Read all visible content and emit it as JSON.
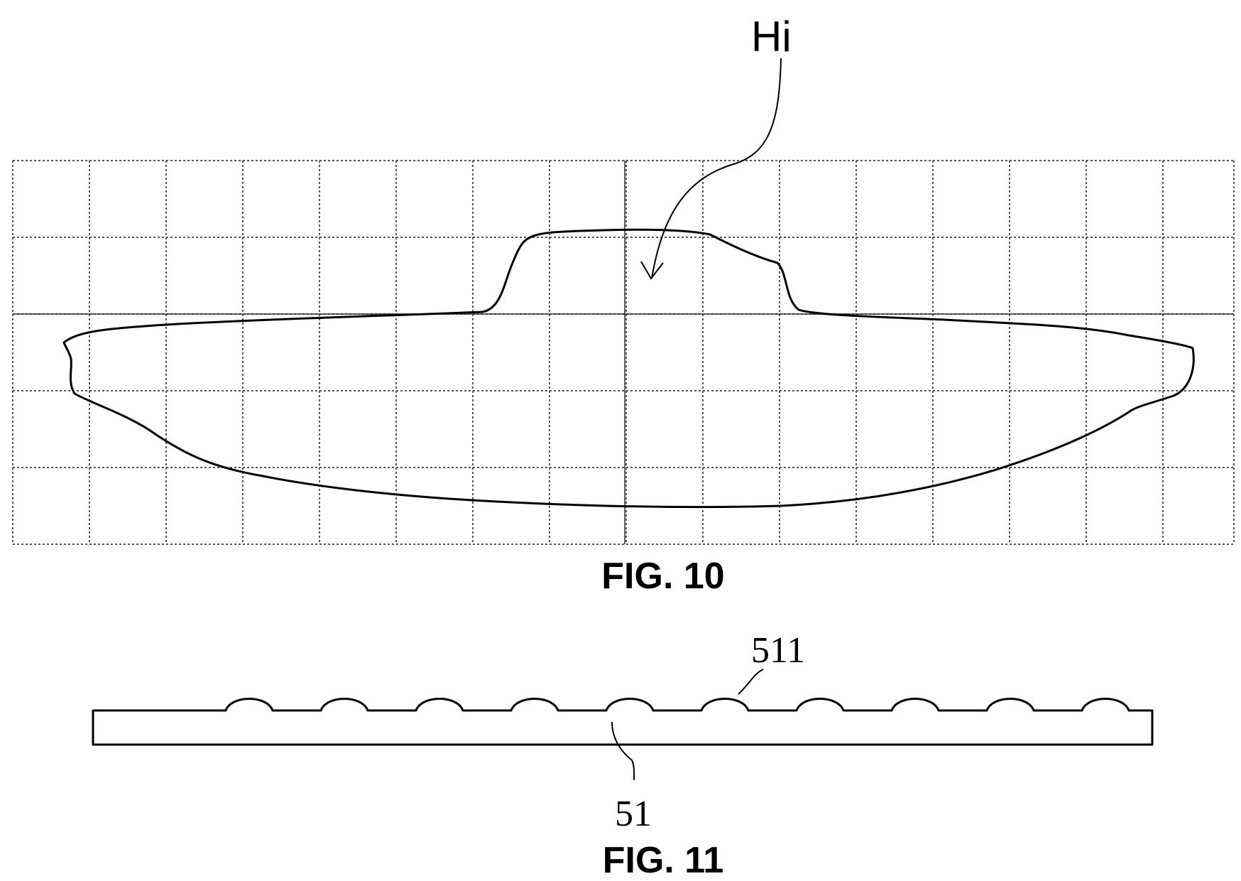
{
  "figures": [
    {
      "id": "fig10",
      "caption": "FIG. 10",
      "labels": [
        {
          "key": "height-label",
          "text": "Hi"
        }
      ]
    },
    {
      "id": "fig11",
      "caption": "FIG. 11",
      "labels": [
        {
          "key": "bump-label",
          "text": "511"
        },
        {
          "key": "plate-label",
          "text": "51"
        }
      ]
    }
  ],
  "colors": {
    "line": "#000000",
    "grid": "#555555",
    "background": "#ffffff"
  }
}
